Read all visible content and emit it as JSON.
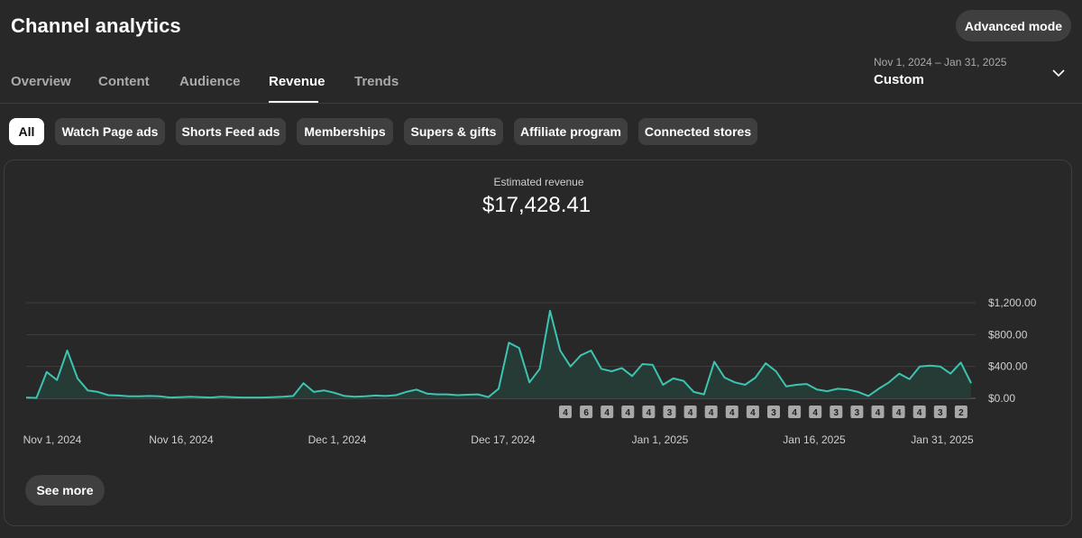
{
  "header": {
    "title": "Channel analytics",
    "advanced_mode_label": "Advanced mode"
  },
  "tabs": [
    {
      "label": "Overview"
    },
    {
      "label": "Content"
    },
    {
      "label": "Audience"
    },
    {
      "label": "Revenue",
      "active": true
    },
    {
      "label": "Trends"
    }
  ],
  "date_picker": {
    "range": "Nov 1, 2024 – Jan 31, 2025",
    "preset": "Custom",
    "icon": "chevron-down-icon"
  },
  "filter_chips": [
    {
      "label": "All",
      "active": true
    },
    {
      "label": "Watch Page ads"
    },
    {
      "label": "Shorts Feed ads"
    },
    {
      "label": "Memberships"
    },
    {
      "label": "Supers & gifts"
    },
    {
      "label": "Affiliate program"
    },
    {
      "label": "Connected stores"
    }
  ],
  "metric": {
    "label": "Estimated revenue",
    "value": "$17,428.41"
  },
  "see_more_label": "See more",
  "colors": {
    "background": "#282828",
    "line": "#3dc4b0",
    "area": "#263a36",
    "chip_bg": "#3f3f3f",
    "marker_bg": "#a8a8a8"
  },
  "chart_data": {
    "type": "area",
    "x_start": "2024-11-01",
    "x_end": "2025-01-31",
    "x_tick_labels": [
      "Nov 1, 2024",
      "Nov 16, 2024",
      "Dec 1, 2024",
      "Dec 17, 2024",
      "Jan 1, 2025",
      "Jan 16, 2025",
      "Jan 31, 2025"
    ],
    "y_tick_labels": [
      "$1,200.00",
      "$800.00",
      "$400.00",
      "$0.00"
    ],
    "ylim": [
      0,
      1200
    ],
    "grid": true,
    "series": [
      {
        "values": [
          10,
          5,
          330,
          230,
          600,
          250,
          100,
          80,
          40,
          35,
          25,
          25,
          30,
          25,
          10,
          15,
          20,
          15,
          10,
          20,
          15,
          10,
          10,
          10,
          15,
          20,
          30,
          190,
          80,
          100,
          70,
          30,
          20,
          25,
          35,
          30,
          40,
          80,
          110,
          60,
          50,
          50,
          40,
          45,
          50,
          15,
          120,
          700,
          630,
          200,
          370,
          1100,
          600,
          400,
          540,
          600,
          370,
          340,
          380,
          280,
          430,
          420,
          170,
          250,
          220,
          80,
          50,
          460,
          260,
          200,
          170,
          260,
          440,
          340,
          150,
          170,
          180,
          110,
          90,
          120,
          110,
          80,
          30,
          120,
          200,
          310,
          240,
          400,
          410,
          400,
          310,
          450,
          190
        ]
      }
    ],
    "markers": [
      "4",
      "6",
      "4",
      "4",
      "4",
      "3",
      "4",
      "4",
      "4",
      "4",
      "3",
      "4",
      "4",
      "3",
      "3",
      "4",
      "4",
      "4",
      "3",
      "2"
    ]
  }
}
